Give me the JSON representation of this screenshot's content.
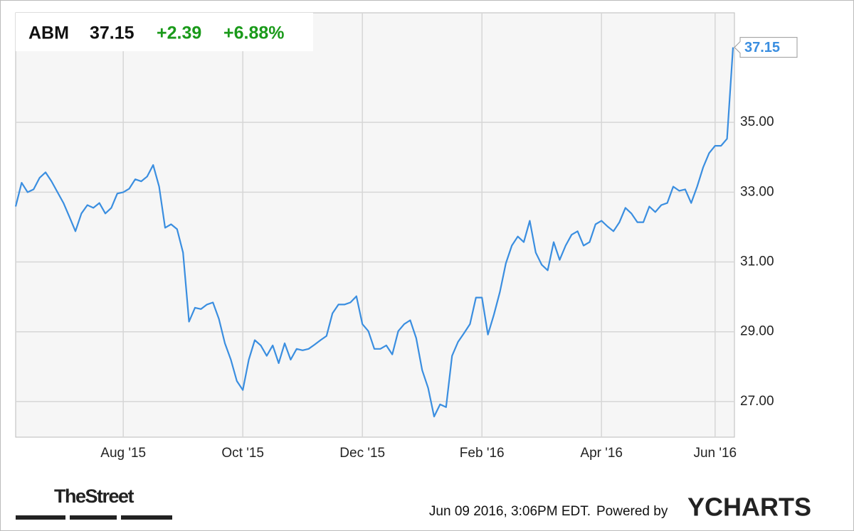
{
  "header": {
    "symbol": "ABM",
    "change": "+2.39",
    "change_pct": "+6.88%"
  },
  "chart_data": {
    "type": "line",
    "categories": [
      null,
      null,
      null,
      null,
      null,
      null,
      null,
      null,
      null,
      null,
      null,
      null,
      null,
      null,
      null,
      null,
      null,
      null,
      "Aug '15",
      null,
      null,
      null,
      null,
      null,
      null,
      null,
      null,
      null,
      null,
      null,
      null,
      null,
      null,
      null,
      null,
      null,
      null,
      null,
      "Oct '15",
      null,
      null,
      null,
      null,
      null,
      null,
      null,
      null,
      null,
      null,
      null,
      null,
      null,
      null,
      null,
      null,
      null,
      null,
      null,
      "Dec '15",
      null,
      null,
      null,
      null,
      null,
      null,
      null,
      null,
      null,
      null,
      null,
      null,
      null,
      null,
      null,
      null,
      null,
      null,
      null,
      "Feb '16",
      null,
      null,
      null,
      null,
      null,
      null,
      null,
      null,
      null,
      null,
      null,
      null,
      null,
      null,
      null,
      null,
      null,
      null,
      null,
      "Apr '16",
      null,
      null,
      null,
      null,
      null,
      null,
      null,
      null,
      null,
      null,
      null,
      null,
      null,
      null,
      null,
      null,
      null,
      null,
      "Jun '16",
      null,
      null,
      null
    ],
    "series": [
      {
        "name": "ABM",
        "color": "#3a8ee0",
        "values": [
          32.59,
          33.27,
          33.0,
          33.08,
          33.41,
          33.57,
          33.31,
          33.0,
          32.69,
          32.29,
          31.88,
          32.39,
          32.63,
          32.55,
          32.69,
          32.39,
          32.55,
          32.96,
          33.0,
          33.1,
          33.37,
          33.31,
          33.45,
          33.78,
          33.16,
          31.98,
          32.08,
          31.94,
          31.27,
          29.29,
          29.69,
          29.65,
          29.78,
          29.84,
          29.37,
          28.67,
          28.2,
          27.59,
          27.33,
          28.2,
          28.76,
          28.61,
          28.31,
          28.61,
          28.1,
          28.67,
          28.2,
          28.51,
          28.47,
          28.51,
          28.63,
          28.76,
          28.88,
          29.53,
          29.78,
          29.78,
          29.84,
          30.02,
          29.22,
          29.02,
          28.51,
          28.51,
          28.61,
          28.35,
          29.02,
          29.22,
          29.33,
          28.82,
          27.9,
          27.39,
          26.57,
          26.92,
          26.84,
          28.31,
          28.71,
          28.96,
          29.22,
          29.98,
          29.98,
          28.92,
          29.49,
          30.14,
          30.96,
          31.47,
          31.73,
          31.57,
          32.18,
          31.27,
          30.92,
          30.76,
          31.57,
          31.06,
          31.47,
          31.78,
          31.88,
          31.47,
          31.57,
          32.08,
          32.18,
          32.02,
          31.88,
          32.14,
          32.55,
          32.39,
          32.14,
          32.14,
          32.59,
          32.43,
          32.63,
          32.69,
          33.16,
          33.04,
          33.08,
          32.69,
          33.16,
          33.71,
          34.12,
          34.33,
          34.33,
          34.53,
          37.15
        ]
      }
    ],
    "ylim": [
      25.98,
      38.14
    ],
    "yticks": [
      {
        "value": 27,
        "label": "27.00"
      },
      {
        "value": 29,
        "label": "29.00"
      },
      {
        "value": 31,
        "label": "31.00"
      },
      {
        "value": 33,
        "label": "33.00"
      },
      {
        "value": 35,
        "label": "35.00"
      }
    ],
    "grid": true
  },
  "footer": {
    "timestamp": "Jun 09 2016, 3:06PM EDT.",
    "powered": "Powered by",
    "brand": "YCHARTS",
    "source": "TheStreet"
  }
}
